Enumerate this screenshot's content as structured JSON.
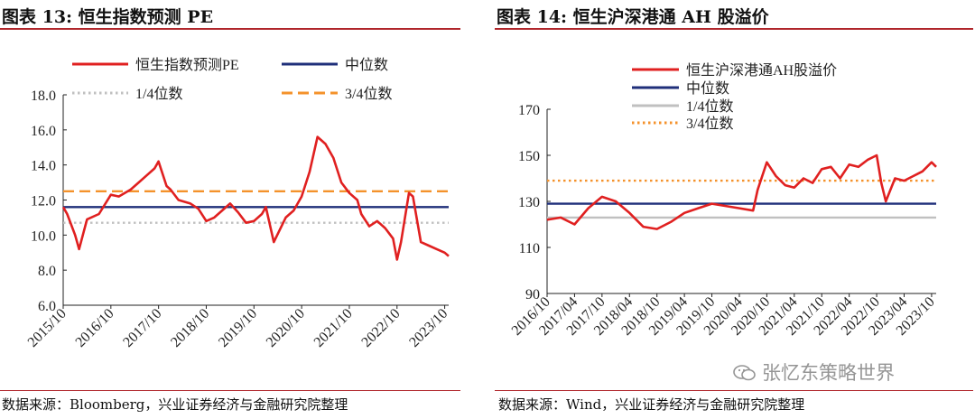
{
  "left": {
    "title": "图表 13:  恒生指数预测 PE",
    "source": "数据来源：Bloomberg，兴业证券经济与金融研究院整理"
  },
  "right": {
    "title": "图表 14:  恒生沪深港通 AH 股溢价",
    "source": "数据来源：Wind，兴业证券经济与金融研究院整理"
  },
  "watermark": "张忆东策略世界",
  "chart_data": [
    {
      "type": "line",
      "title": "恒生指数预测 PE",
      "xlabel": "",
      "ylabel": "",
      "ylim": [
        6.0,
        18.0
      ],
      "yticks": [
        "6.0",
        "8.0",
        "10.0",
        "12.0",
        "14.0",
        "16.0",
        "18.0"
      ],
      "xticks": [
        "2015/10",
        "2016/10",
        "2017/10",
        "2018/10",
        "2019/10",
        "2020/10",
        "2021/10",
        "2022/10",
        "2023/10"
      ],
      "legend_placement": "top",
      "series": [
        {
          "name": "恒生指数预测PE",
          "color": "#e02020",
          "style": "solid",
          "x": [
            "2015/10",
            "2015/11",
            "2016/01",
            "2016/02",
            "2016/04",
            "2016/07",
            "2016/10",
            "2016/12",
            "2017/03",
            "2017/05",
            "2017/07",
            "2017/09",
            "2017/10",
            "2017/12",
            "2018/01",
            "2018/03",
            "2018/06",
            "2018/08",
            "2018/10",
            "2018/12",
            "2019/02",
            "2019/04",
            "2019/06",
            "2019/08",
            "2019/10",
            "2019/12",
            "2020/01",
            "2020/03",
            "2020/06",
            "2020/08",
            "2020/10",
            "2020/12",
            "2021/02",
            "2021/04",
            "2021/06",
            "2021/08",
            "2021/10",
            "2021/12",
            "2022/01",
            "2022/03",
            "2022/05",
            "2022/07",
            "2022/09",
            "2022/10",
            "2022/11",
            "2023/01",
            "2023/02",
            "2023/04",
            "2023/06",
            "2023/08",
            "2023/10",
            "2023/11"
          ],
          "values": [
            11.6,
            11.2,
            10.0,
            9.2,
            10.9,
            11.2,
            12.3,
            12.2,
            12.6,
            13.0,
            13.4,
            13.8,
            14.2,
            12.8,
            12.6,
            12.0,
            11.8,
            11.5,
            10.8,
            11.0,
            11.4,
            11.8,
            11.3,
            10.7,
            10.8,
            11.2,
            11.6,
            9.6,
            11.0,
            11.4,
            12.2,
            13.6,
            15.6,
            15.2,
            14.4,
            13.0,
            12.4,
            12.0,
            11.2,
            10.5,
            10.8,
            10.4,
            9.8,
            8.6,
            9.6,
            12.4,
            12.2,
            9.6,
            9.4,
            9.2,
            9.0,
            8.8
          ]
        },
        {
          "name": "中位数",
          "color": "#1f2f7a",
          "style": "solid",
          "x": [
            "2015/10",
            "2023/11"
          ],
          "values": [
            11.6,
            11.6
          ]
        },
        {
          "name": "1/4位数",
          "color": "#c0c0c0",
          "style": "dotted",
          "x": [
            "2015/10",
            "2023/11"
          ],
          "values": [
            10.7,
            10.7
          ]
        },
        {
          "name": "3/4位数",
          "color": "#f4922b",
          "style": "dashed",
          "x": [
            "2015/10",
            "2023/11"
          ],
          "values": [
            12.5,
            12.5
          ]
        }
      ]
    },
    {
      "type": "line",
      "title": "恒生沪深港通 AH 股溢价",
      "xlabel": "",
      "ylabel": "",
      "ylim": [
        90,
        170
      ],
      "yticks": [
        "90",
        "110",
        "130",
        "150",
        "170"
      ],
      "xticks": [
        "2016/10",
        "2017/04",
        "2017/10",
        "2018/04",
        "2018/10",
        "2019/04",
        "2019/10",
        "2020/04",
        "2020/10",
        "2021/04",
        "2021/10",
        "2022/04",
        "2022/10",
        "2023/04",
        "2023/10"
      ],
      "legend_placement": "top",
      "series": [
        {
          "name": "恒生沪深港通AH股溢价",
          "color": "#e02020",
          "style": "solid",
          "x": [
            "2016/10",
            "2017/01",
            "2017/04",
            "2017/07",
            "2017/10",
            "2018/01",
            "2018/04",
            "2018/07",
            "2018/10",
            "2019/01",
            "2019/04",
            "2019/07",
            "2019/10",
            "2020/01",
            "2020/04",
            "2020/07",
            "2020/08",
            "2020/10",
            "2020/12",
            "2021/02",
            "2021/04",
            "2021/06",
            "2021/08",
            "2021/10",
            "2021/12",
            "2022/02",
            "2022/04",
            "2022/06",
            "2022/08",
            "2022/10",
            "2022/11",
            "2022/12",
            "2023/02",
            "2023/04",
            "2023/06",
            "2023/08",
            "2023/10",
            "2023/11"
          ],
          "values": [
            122,
            123,
            120,
            127,
            132,
            130,
            125,
            119,
            118,
            121,
            125,
            127,
            129,
            128,
            127,
            126,
            135,
            147,
            141,
            137,
            136,
            140,
            138,
            144,
            145,
            140,
            146,
            145,
            148,
            150,
            138,
            130,
            140,
            139,
            141,
            143,
            147,
            145
          ]
        },
        {
          "name": "中位数",
          "color": "#1f2f7a",
          "style": "solid",
          "x": [
            "2016/10",
            "2023/11"
          ],
          "values": [
            129,
            129
          ]
        },
        {
          "name": "1/4位数",
          "color": "#c0c0c0",
          "style": "solid",
          "x": [
            "2016/10",
            "2023/11"
          ],
          "values": [
            123,
            123
          ]
        },
        {
          "name": "3/4位数",
          "color": "#f4922b",
          "style": "dotted",
          "x": [
            "2016/10",
            "2023/11"
          ],
          "values": [
            139,
            139
          ]
        }
      ]
    }
  ]
}
